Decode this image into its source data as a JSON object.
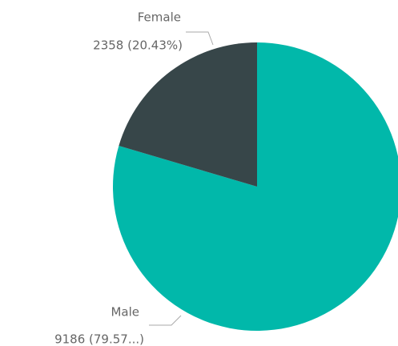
{
  "chart_data": {
    "type": "pie",
    "categories": [
      "Male",
      "Female"
    ],
    "values": [
      9186,
      2358
    ],
    "value_labels": [
      "9186 (79.57...)",
      "2358 (20.43%)"
    ],
    "colors": [
      "#01B8AA",
      "#374649"
    ]
  }
}
